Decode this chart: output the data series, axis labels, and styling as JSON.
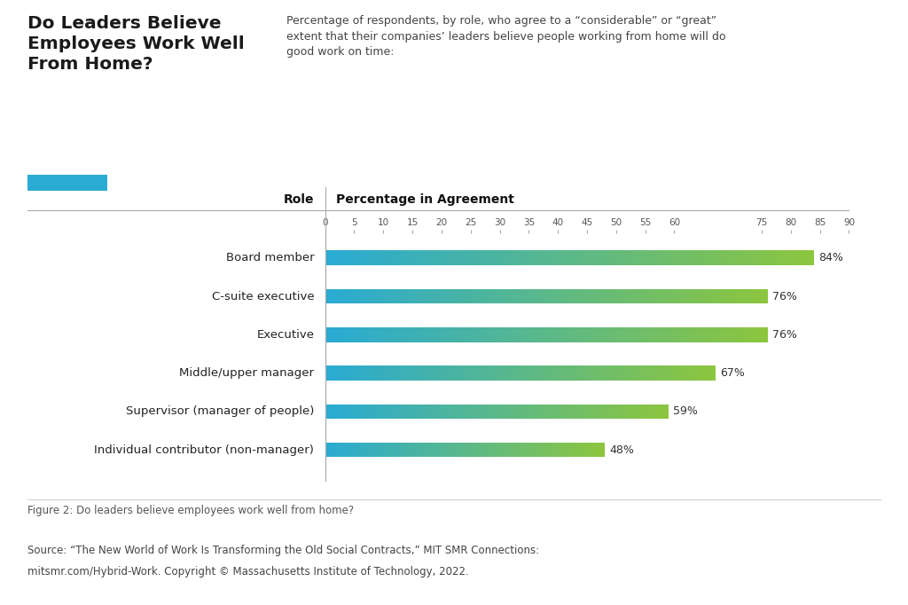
{
  "title": "Do Leaders Believe\nEmployees Work Well\nFrom Home?",
  "subtitle": "Percentage of respondents, by role, who agree to a “considerable” or “great”\nextent that their companies’ leaders believe people working from home will do\ngood work on time:",
  "col_header_left": "Role",
  "col_header_right": "Percentage in Agreement",
  "categories": [
    "Board member",
    "C-suite executive",
    "Executive",
    "Middle/upper manager",
    "Supervisor (manager of people)",
    "Individual contributor (non-manager)"
  ],
  "values": [
    84,
    76,
    76,
    67,
    59,
    48
  ],
  "bar_color_left": "#29ABD4",
  "bar_color_right": "#8DC63F",
  "xlim_max": 90,
  "xticks": [
    0,
    5,
    10,
    15,
    20,
    25,
    30,
    35,
    40,
    45,
    50,
    55,
    60,
    75,
    80,
    85,
    90
  ],
  "figure_label": "Figure 2: Do leaders believe employees work well from home?",
  "source_line1": "Source: “The New World of Work Is Transforming the Old Social Contracts,” MIT SMR Connections:",
  "source_line2": "mitsmr.com/Hybrid-Work. Copyright © Massachusetts Institute of Technology, 2022.",
  "background_color": "#FFFFFF",
  "title_color": "#1a1a1a",
  "legend_color": "#29ABD4"
}
